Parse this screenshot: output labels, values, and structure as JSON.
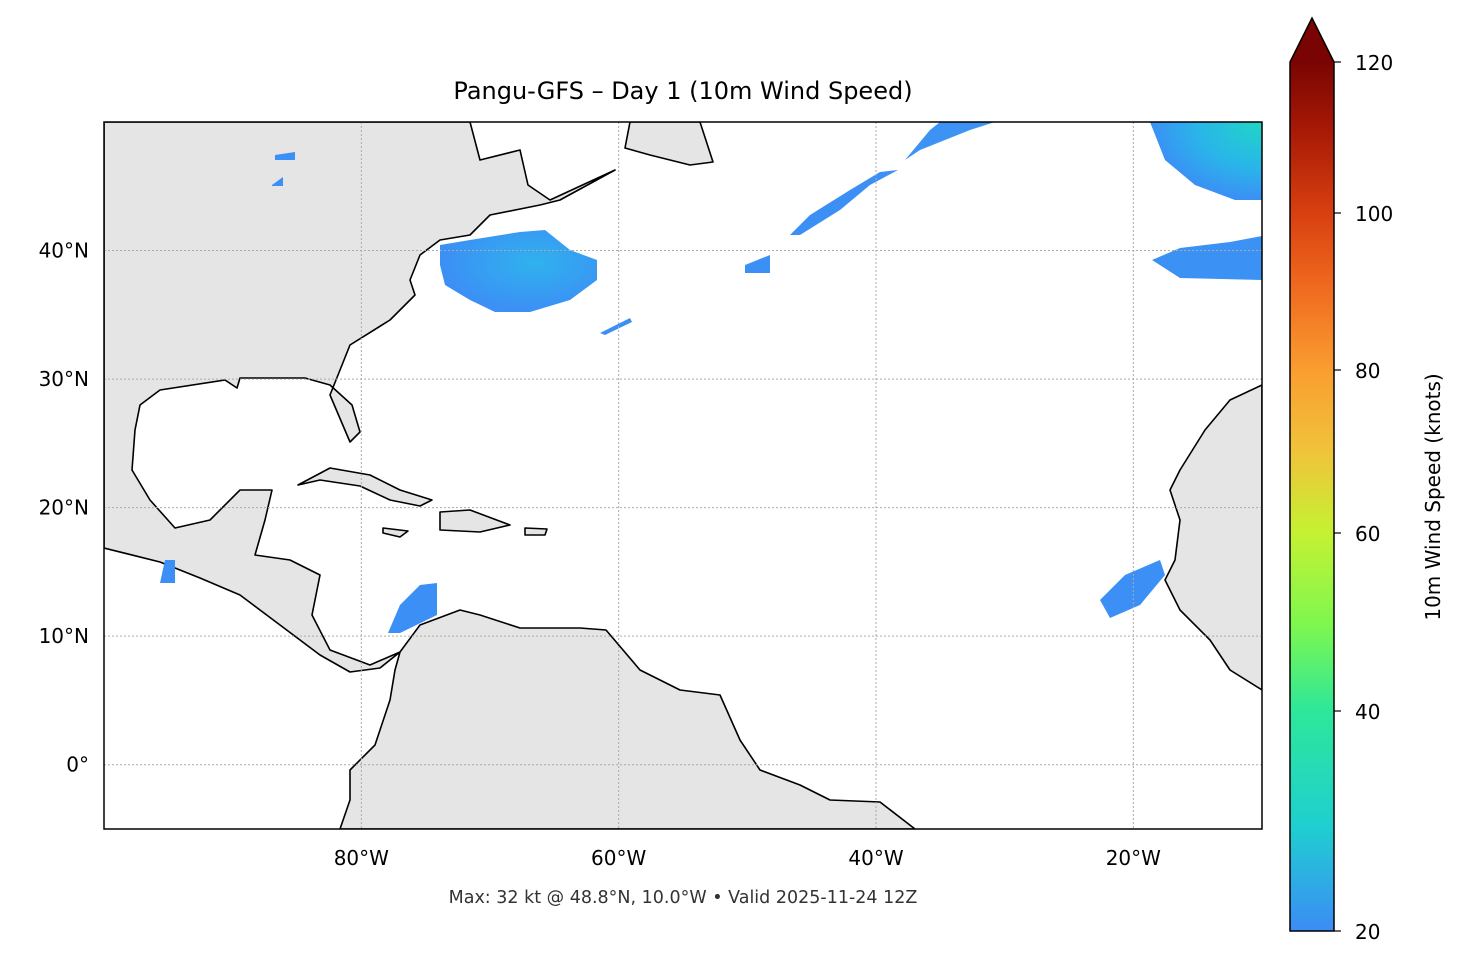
{
  "chart_data": {
    "type": "heatmap",
    "title": "Pangu-GFS – Day 1 (10m Wind Speed)",
    "footer": "Max: 32 kt @ 48.8°N, 10.0°W • Valid 2025-11-24 12Z",
    "projection": "PlateCarree",
    "lon_range": [
      -100,
      -10
    ],
    "lat_range": [
      -5,
      50
    ],
    "x_ticks": [
      {
        "value": -80,
        "label": "80°W"
      },
      {
        "value": -60,
        "label": "60°W"
      },
      {
        "value": -40,
        "label": "40°W"
      },
      {
        "value": -20,
        "label": "20°W"
      }
    ],
    "y_ticks": [
      {
        "value": 40,
        "label": "40°N"
      },
      {
        "value": 30,
        "label": "30°N"
      },
      {
        "value": 20,
        "label": "20°N"
      },
      {
        "value": 10,
        "label": "10°N"
      },
      {
        "value": 0,
        "label": "0°"
      }
    ],
    "grid": true,
    "land_color": "#e5e5e5",
    "colorbar": {
      "label": "10m Wind Speed (knots)",
      "range": [
        20,
        120
      ],
      "extend": "max",
      "colormap": "turbo",
      "ticks": [
        {
          "value": 20,
          "label": "20"
        },
        {
          "value": 40,
          "label": "40"
        },
        {
          "value": 60,
          "label": "60"
        },
        {
          "value": 80,
          "label": "80"
        },
        {
          "value": 100,
          "label": "100"
        },
        {
          "value": 120,
          "label": "120"
        }
      ],
      "colors": [
        "#3b8cf5",
        "#1fcfd0",
        "#2de79a",
        "#c5f232",
        "#fa9d30",
        "#d8400f",
        "#7a0403"
      ]
    },
    "max_wind": {
      "value_kt": 32,
      "lat": 48.8,
      "lon": -10.0
    }
  }
}
